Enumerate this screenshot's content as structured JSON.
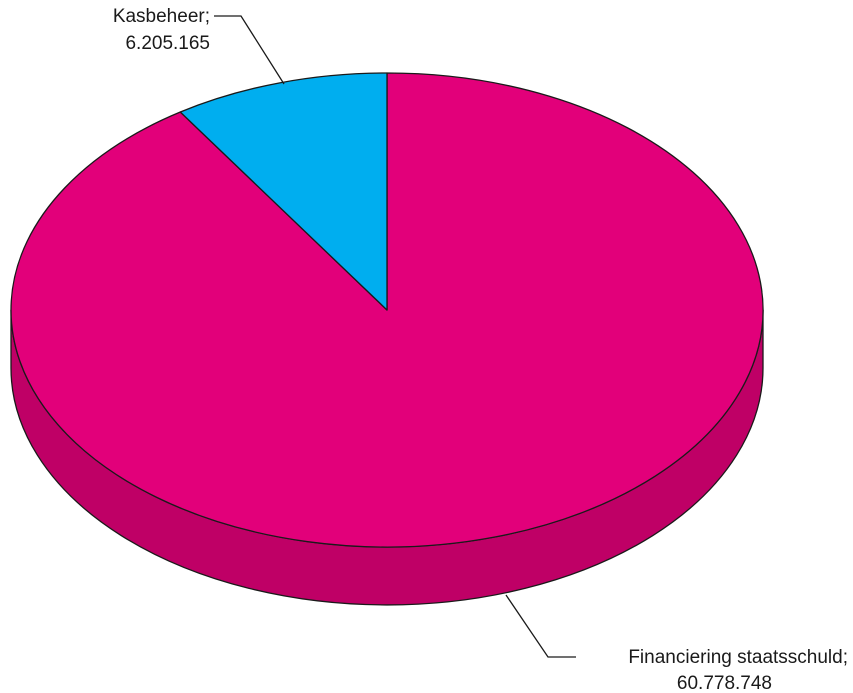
{
  "chart_data": {
    "type": "pie",
    "style": "3d",
    "title": "",
    "slices": [
      {
        "name": "Financiering staatsschuld",
        "value": 60778748,
        "label_line1": "Financiering staatsschuld;",
        "label_line2": "60.778.748",
        "color": "#e2007a",
        "side_color": "#bf0066"
      },
      {
        "name": "Kasbeheer",
        "value": 6205165,
        "label_line1": "Kasbeheer;",
        "label_line2": "6.205.165",
        "color": "#00aeef",
        "side_color": "#0090c8"
      }
    ],
    "legend": "none"
  }
}
